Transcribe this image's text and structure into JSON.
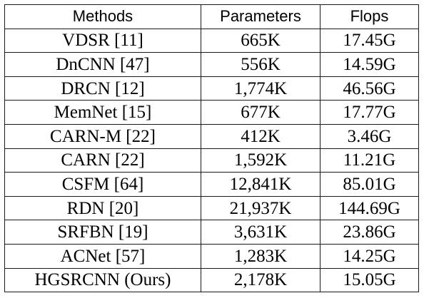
{
  "table": {
    "headers": [
      "Methods",
      "Parameters",
      "Flops"
    ],
    "rows": [
      [
        "VDSR [11]",
        "665K",
        "17.45G"
      ],
      [
        "DnCNN [47]",
        "556K",
        "14.59G"
      ],
      [
        "DRCN [12]",
        "1,774K",
        "46.56G"
      ],
      [
        "MemNet [15]",
        "677K",
        "17.77G"
      ],
      [
        "CARN-M [22]",
        "412K",
        "3.46G"
      ],
      [
        "CARN [22]",
        "1,592K",
        "11.21G"
      ],
      [
        "CSFM [64]",
        "12,841K",
        "85.01G"
      ],
      [
        "RDN [20]",
        "21,937K",
        "144.69G"
      ],
      [
        "SRFBN [19]",
        "3,631K",
        "23.86G"
      ],
      [
        "ACNet [57]",
        "1,283K",
        "14.25G"
      ],
      [
        "HGSRCNN (Ours)",
        "2,178K",
        "15.05G"
      ]
    ]
  }
}
